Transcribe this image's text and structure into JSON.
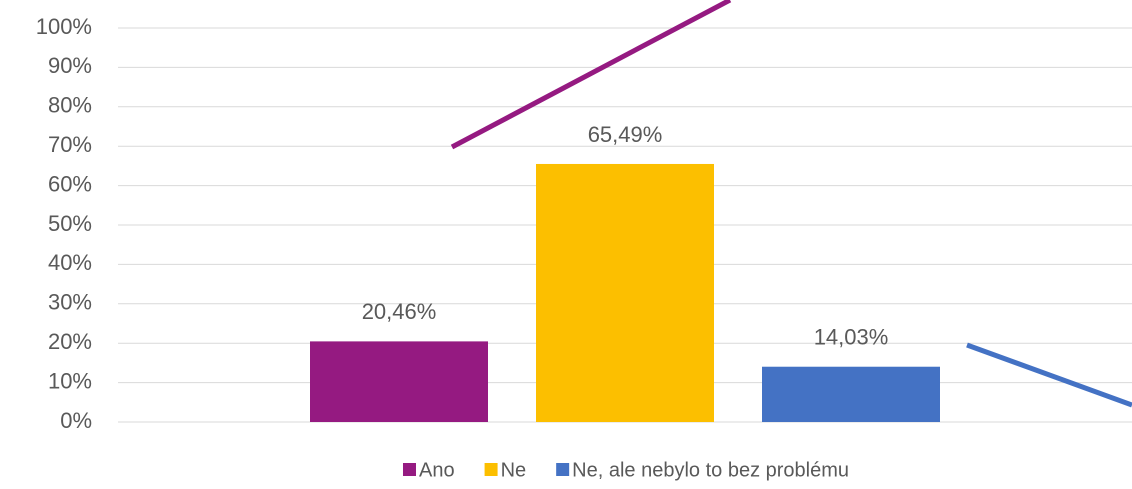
{
  "chart_data": {
    "type": "bar",
    "categories": [
      null
    ],
    "series": [
      {
        "name": "Ano",
        "color": "#951a81",
        "values": [
          20.46
        ],
        "value_labels": [
          "20,46%"
        ]
      },
      {
        "name": "Ne",
        "color": "#fcbf00",
        "values": [
          65.49
        ],
        "value_labels": [
          "65,49%"
        ]
      },
      {
        "name": "Ne, ale nebylo to bez problému",
        "color": "#4472c4",
        "values": [
          14.03
        ],
        "value_labels": [
          "14,03%"
        ]
      }
    ],
    "ylim": [
      0,
      100
    ],
    "yticks": [
      {
        "value": 0,
        "label": "0%"
      },
      {
        "value": 10,
        "label": "10%"
      },
      {
        "value": 20,
        "label": "20%"
      },
      {
        "value": 30,
        "label": "30%"
      },
      {
        "value": 40,
        "label": "40%"
      },
      {
        "value": 50,
        "label": "50%"
      },
      {
        "value": 60,
        "label": "60%"
      },
      {
        "value": 70,
        "label": "70%"
      },
      {
        "value": 80,
        "label": "80%"
      },
      {
        "value": 90,
        "label": "90%"
      },
      {
        "value": 100,
        "label": "100%"
      }
    ],
    "grid": true,
    "legend": "bottom"
  }
}
